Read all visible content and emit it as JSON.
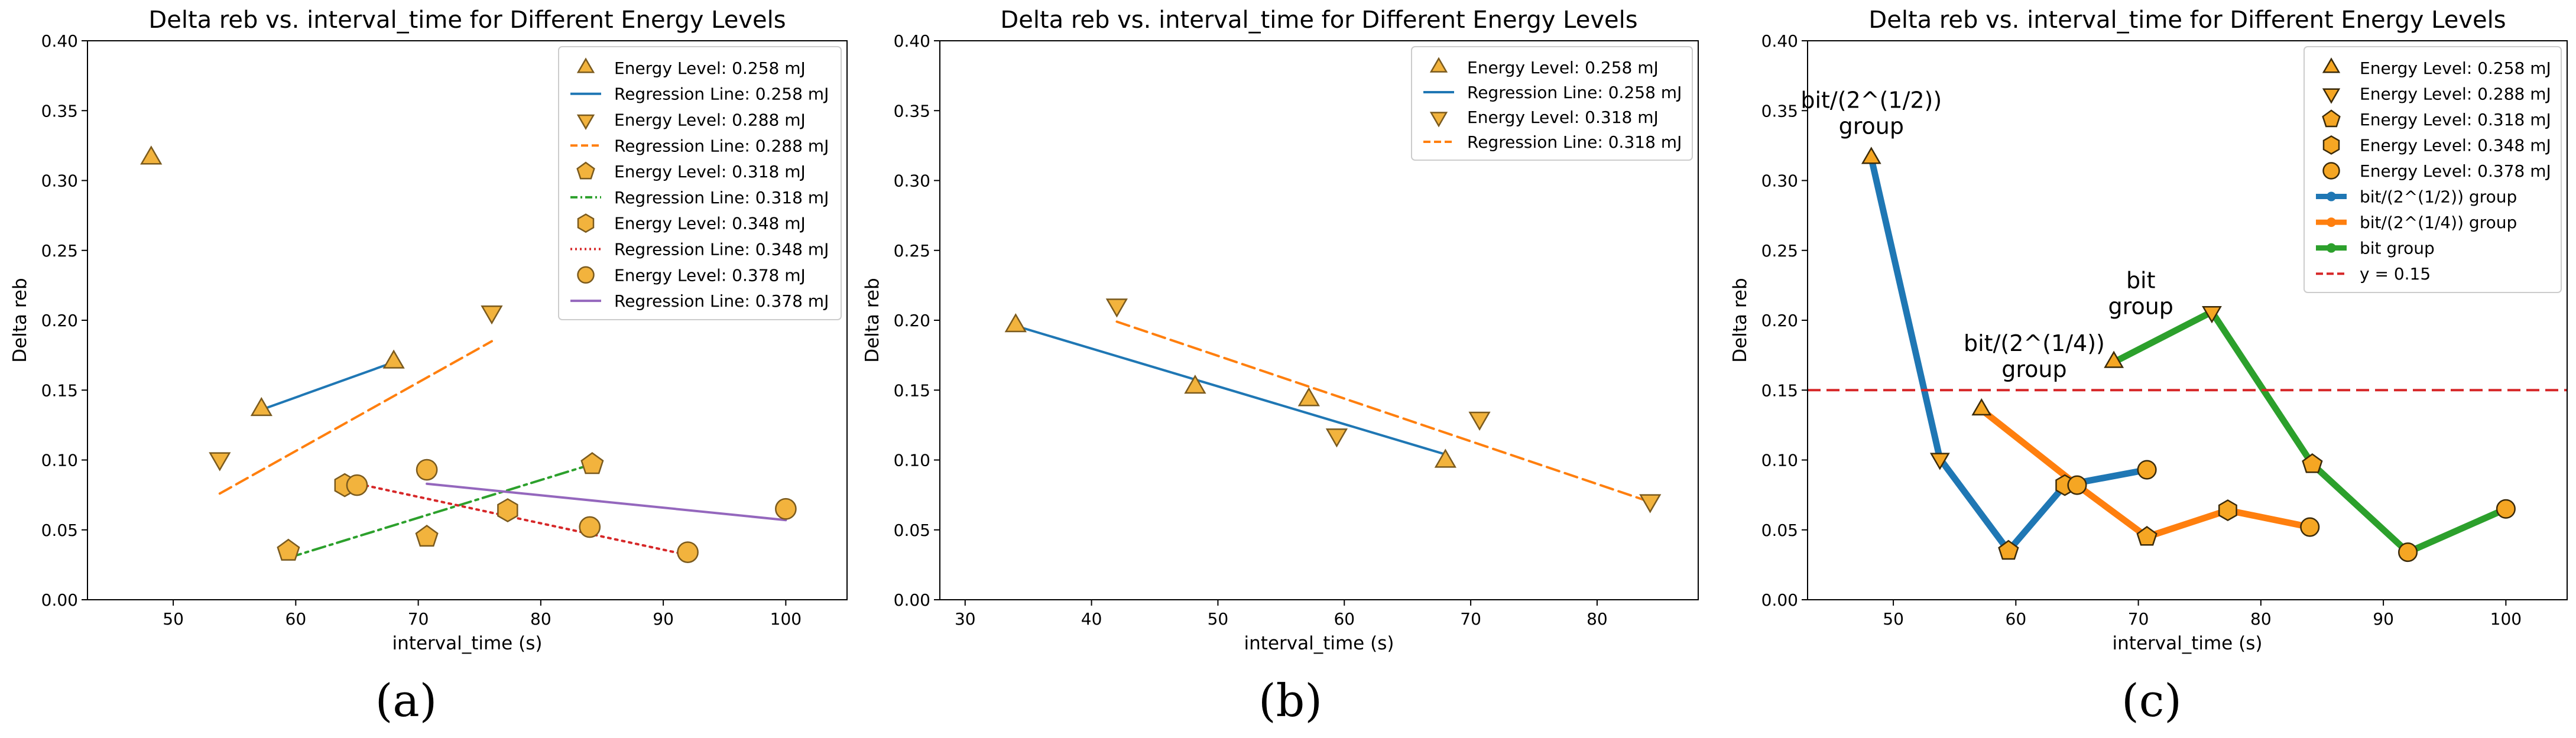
{
  "colors": {
    "marker_fill": "#f2b33d",
    "marker_fill_c": "#f5a623",
    "marker_edge": "#7a5a1e",
    "blue": "#1f77b4",
    "orange": "#ff7f0e",
    "green": "#2ca02c",
    "red": "#d62728",
    "purple": "#9467bd"
  },
  "chart_data": [
    {
      "panel": "(a)",
      "type": "scatter",
      "title": "Delta reb vs. interval_time for Different Energy Levels",
      "xlabel": "interval_time (s)",
      "ylabel": "Delta reb",
      "xlim": [
        43,
        105
      ],
      "ylim": [
        0.0,
        0.4
      ],
      "xticks": [
        "50",
        "60",
        "70",
        "80",
        "90",
        "100"
      ],
      "yticks": [
        "0.00",
        "0.05",
        "0.10",
        "0.15",
        "0.20",
        "0.25",
        "0.30",
        "0.35",
        "0.40"
      ],
      "legend_position": "top-right",
      "series": [
        {
          "name": "Energy Level: 0.258 mJ",
          "kind": "points",
          "marker": "triangle-up",
          "points": [
            [
              48.2,
              0.316
            ],
            [
              57.2,
              0.136
            ],
            [
              68.0,
              0.17
            ]
          ]
        },
        {
          "name": "Regression Line: 0.258 mJ",
          "kind": "line",
          "color": "#1f77b4",
          "dash": "solid",
          "points": [
            [
              57.2,
              0.136
            ],
            [
              68.0,
              0.17
            ]
          ]
        },
        {
          "name": "Energy Level: 0.288 mJ",
          "kind": "points",
          "marker": "triangle-down",
          "points": [
            [
              53.8,
              0.101
            ],
            [
              76.0,
              0.206
            ]
          ]
        },
        {
          "name": "Regression Line: 0.288 mJ",
          "kind": "line",
          "color": "#ff7f0e",
          "dash": "dashed",
          "points": [
            [
              53.8,
              0.076
            ],
            [
              76.0,
              0.185
            ]
          ]
        },
        {
          "name": "Energy Level: 0.318 mJ",
          "kind": "points",
          "marker": "pentagon",
          "points": [
            [
              59.4,
              0.035
            ],
            [
              70.7,
              0.045
            ],
            [
              84.2,
              0.097
            ]
          ]
        },
        {
          "name": "Regression Line: 0.318 mJ",
          "kind": "line",
          "color": "#2ca02c",
          "dash": "dashdot",
          "points": [
            [
              59.4,
              0.03
            ],
            [
              84.2,
              0.097
            ]
          ]
        },
        {
          "name": "Energy Level: 0.348 mJ",
          "kind": "points",
          "marker": "hexagon",
          "points": [
            [
              64.0,
              0.082
            ],
            [
              77.3,
              0.064
            ]
          ]
        },
        {
          "name": "Regression Line: 0.348 mJ",
          "kind": "line",
          "color": "#d62728",
          "dash": "dotted",
          "points": [
            [
              64.0,
              0.085
            ],
            [
              92.0,
              0.032
            ]
          ]
        },
        {
          "name": "Energy Level: 0.378 mJ",
          "kind": "points",
          "marker": "circle",
          "points": [
            [
              65.0,
              0.082
            ],
            [
              70.7,
              0.093
            ],
            [
              84.0,
              0.052
            ],
            [
              92.0,
              0.034
            ],
            [
              100.0,
              0.065
            ]
          ]
        },
        {
          "name": "Regression Line: 0.378 mJ",
          "kind": "line",
          "color": "#9467bd",
          "dash": "solid",
          "points": [
            [
              70.7,
              0.083
            ],
            [
              100.0,
              0.057
            ]
          ]
        }
      ],
      "annotations": []
    },
    {
      "panel": "(b)",
      "type": "scatter",
      "title": "Delta reb vs. interval_time for Different Energy Levels",
      "xlabel": "interval_time (s)",
      "ylabel": "Delta reb",
      "xlim": [
        28,
        88
      ],
      "ylim": [
        0.0,
        0.4
      ],
      "xticks": [
        "30",
        "40",
        "50",
        "60",
        "70",
        "80"
      ],
      "yticks": [
        "0.00",
        "0.05",
        "0.10",
        "0.15",
        "0.20",
        "0.25",
        "0.30",
        "0.35",
        "0.40"
      ],
      "legend_position": "top-right",
      "series": [
        {
          "name": "Energy Level: 0.258 mJ",
          "kind": "points",
          "marker": "triangle-up",
          "points": [
            [
              34.0,
              0.196
            ],
            [
              48.2,
              0.152
            ],
            [
              57.2,
              0.143
            ],
            [
              68.0,
              0.099
            ]
          ]
        },
        {
          "name": "Regression Line: 0.258 mJ",
          "kind": "line",
          "color": "#1f77b4",
          "dash": "solid",
          "points": [
            [
              34.0,
              0.196
            ],
            [
              68.0,
              0.104
            ]
          ]
        },
        {
          "name": "Energy Level: 0.318 mJ",
          "kind": "points",
          "marker": "triangle-down",
          "points": [
            [
              42.0,
              0.211
            ],
            [
              59.4,
              0.118
            ],
            [
              70.7,
              0.13
            ],
            [
              84.2,
              0.071
            ]
          ]
        },
        {
          "name": "Regression Line: 0.318 mJ",
          "kind": "line",
          "color": "#ff7f0e",
          "dash": "dashed",
          "points": [
            [
              42.0,
              0.199
            ],
            [
              84.2,
              0.07
            ]
          ]
        }
      ],
      "annotations": []
    },
    {
      "panel": "(c)",
      "type": "line",
      "title": "Delta reb vs. interval_time for Different Energy Levels",
      "xlabel": "interval_time (s)",
      "ylabel": "Delta reb",
      "xlim": [
        43,
        105
      ],
      "ylim": [
        0.0,
        0.4
      ],
      "xticks": [
        "50",
        "60",
        "70",
        "80",
        "90",
        "100"
      ],
      "yticks": [
        "0.00",
        "0.05",
        "0.10",
        "0.15",
        "0.20",
        "0.25",
        "0.30",
        "0.35",
        "0.40"
      ],
      "legend_position": "top-right",
      "series": [
        {
          "name": "bit/(2^(1/2)) group",
          "kind": "line",
          "color": "#1f77b4",
          "dash": "solid",
          "width": 11,
          "points": [
            [
              48.2,
              0.316
            ],
            [
              53.8,
              0.101
            ],
            [
              59.4,
              0.035
            ],
            [
              64.0,
              0.082
            ],
            [
              70.7,
              0.093
            ]
          ]
        },
        {
          "name": "bit/(2^(1/4)) group",
          "kind": "line",
          "color": "#ff7f0e",
          "dash": "solid",
          "width": 11,
          "points": [
            [
              57.2,
              0.136
            ],
            [
              65.0,
              0.082
            ],
            [
              70.7,
              0.045
            ],
            [
              77.3,
              0.064
            ],
            [
              84.0,
              0.052
            ]
          ]
        },
        {
          "name": "bit group",
          "kind": "line",
          "color": "#2ca02c",
          "dash": "solid",
          "width": 11,
          "points": [
            [
              68.0,
              0.17
            ],
            [
              76.0,
              0.206
            ],
            [
              84.2,
              0.097
            ],
            [
              92.0,
              0.034
            ],
            [
              100.0,
              0.065
            ]
          ]
        },
        {
          "name": "y = 0.15",
          "kind": "hline",
          "color": "#d62728",
          "dash": "dashed",
          "y": 0.15
        },
        {
          "name": "Energy Level: 0.258 mJ",
          "kind": "points",
          "marker": "triangle-up",
          "points": [
            [
              48.2,
              0.316
            ],
            [
              57.2,
              0.136
            ],
            [
              68.0,
              0.17
            ]
          ]
        },
        {
          "name": "Energy Level: 0.288 mJ",
          "kind": "points",
          "marker": "triangle-down",
          "points": [
            [
              53.8,
              0.101
            ],
            [
              76.0,
              0.206
            ]
          ]
        },
        {
          "name": "Energy Level: 0.318 mJ",
          "kind": "points",
          "marker": "pentagon",
          "points": [
            [
              59.4,
              0.035
            ],
            [
              70.7,
              0.045
            ],
            [
              84.2,
              0.097
            ]
          ]
        },
        {
          "name": "Energy Level: 0.348 mJ",
          "kind": "points",
          "marker": "hexagon",
          "points": [
            [
              64.0,
              0.082
            ],
            [
              77.3,
              0.064
            ]
          ]
        },
        {
          "name": "Energy Level: 0.378 mJ",
          "kind": "points",
          "marker": "circle",
          "points": [
            [
              65.0,
              0.082
            ],
            [
              70.7,
              0.093
            ],
            [
              84.0,
              0.052
            ],
            [
              92.0,
              0.034
            ],
            [
              100.0,
              0.065
            ]
          ]
        }
      ],
      "legend_order": [
        "Energy Level: 0.258 mJ",
        "Energy Level: 0.288 mJ",
        "Energy Level: 0.318 mJ",
        "Energy Level: 0.348 mJ",
        "Energy Level: 0.378 mJ",
        "bit/(2^(1/2)) group",
        "bit/(2^(1/4)) group",
        "bit group",
        "y = 0.15"
      ],
      "annotations": [
        {
          "lines": [
            "bit/(2^(1/2))",
            "group"
          ],
          "x": 48.2,
          "y": 0.352
        },
        {
          "lines": [
            "bit/(2^(1/4))",
            "group"
          ],
          "x": 61.5,
          "y": 0.178
        },
        {
          "lines": [
            "bit",
            "group"
          ],
          "x": 70.2,
          "y": 0.223
        }
      ]
    }
  ],
  "panel_labels": [
    "(a)",
    "(b)",
    "(c)"
  ]
}
